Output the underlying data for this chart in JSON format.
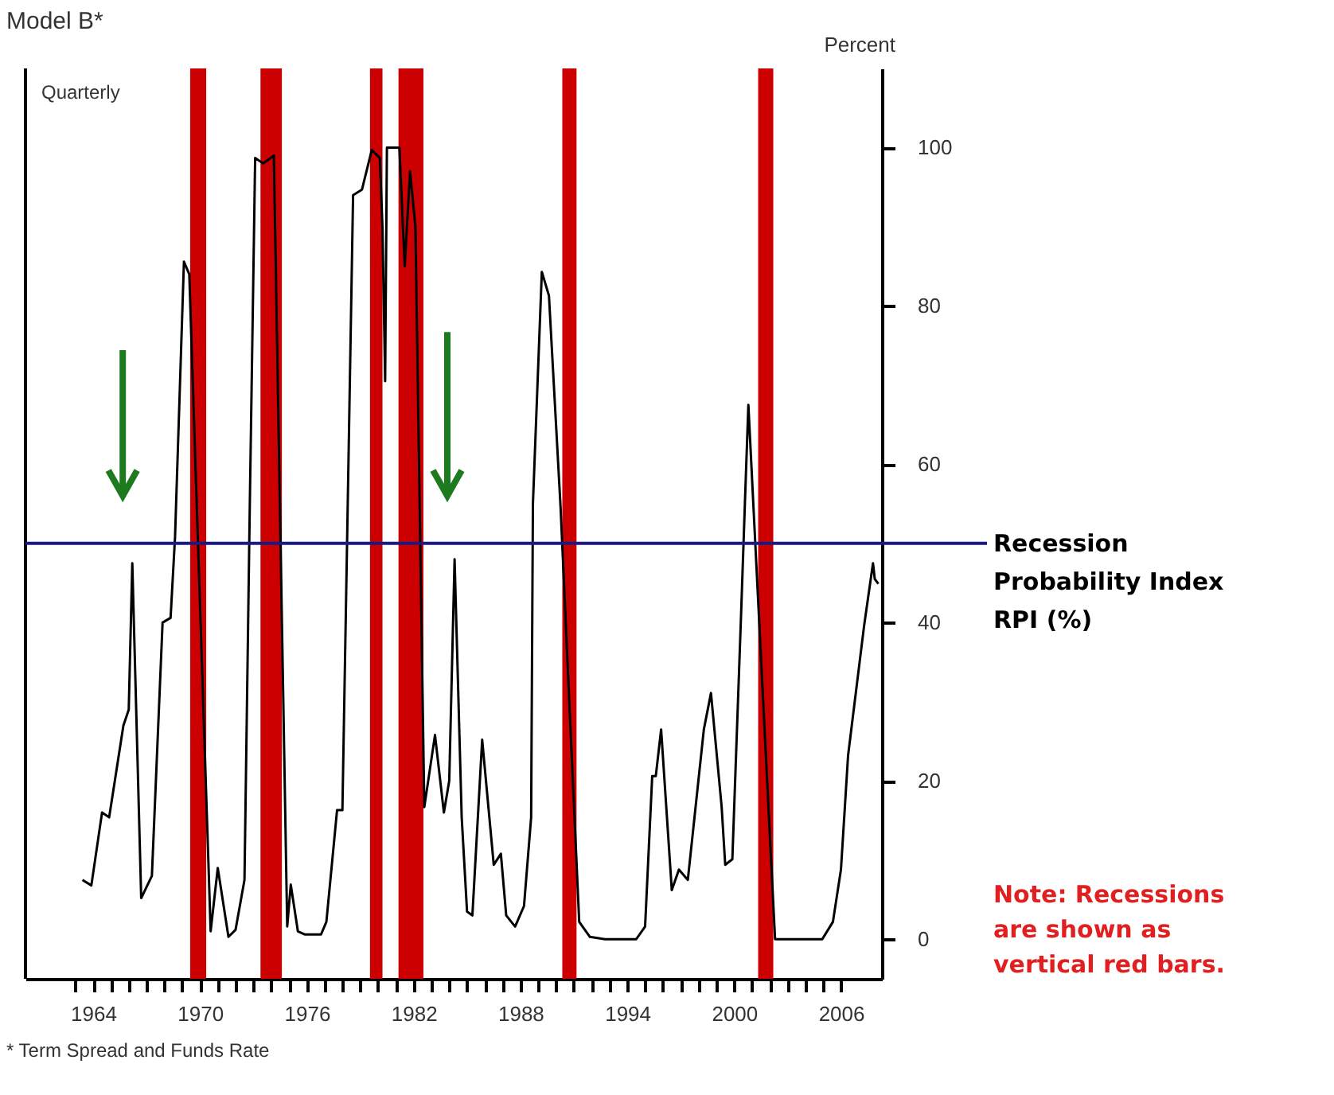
{
  "chart_data": {
    "type": "line",
    "title": "Model B*",
    "ylabel": "Percent",
    "annotations": [
      "Quarterly",
      "* Term Spread and Funds Rate",
      "Note: Recessions are shown as vertical red bars."
    ],
    "xlim": [
      1960.2,
      2008.3
    ],
    "xticks": [
      {
        "value": 1963,
        "label": null
      },
      {
        "value": 1964,
        "label": "1964"
      },
      {
        "value": 1965,
        "label": null
      },
      {
        "value": 1966,
        "label": null
      },
      {
        "value": 1967,
        "label": null
      },
      {
        "value": 1968,
        "label": null
      },
      {
        "value": 1969,
        "label": null
      },
      {
        "value": 1970,
        "label": "1970"
      },
      {
        "value": 1971,
        "label": null
      },
      {
        "value": 1972,
        "label": null
      },
      {
        "value": 1973,
        "label": null
      },
      {
        "value": 1974,
        "label": null
      },
      {
        "value": 1975,
        "label": null
      },
      {
        "value": 1976,
        "label": "1976"
      },
      {
        "value": 1977,
        "label": null
      },
      {
        "value": 1978,
        "label": null
      },
      {
        "value": 1979,
        "label": null
      },
      {
        "value": 1980,
        "label": null
      },
      {
        "value": 1981,
        "label": null
      },
      {
        "value": 1982,
        "label": "1982"
      },
      {
        "value": 1983,
        "label": null
      },
      {
        "value": 1984,
        "label": null
      },
      {
        "value": 1985,
        "label": null
      },
      {
        "value": 1986,
        "label": null
      },
      {
        "value": 1987,
        "label": null
      },
      {
        "value": 1988,
        "label": "1988"
      },
      {
        "value": 1989,
        "label": null
      },
      {
        "value": 1990,
        "label": null
      },
      {
        "value": 1991,
        "label": null
      },
      {
        "value": 1992,
        "label": null
      },
      {
        "value": 1993,
        "label": null
      },
      {
        "value": 1994,
        "label": "1994"
      },
      {
        "value": 1995,
        "label": null
      },
      {
        "value": 1996,
        "label": null
      },
      {
        "value": 1997,
        "label": null
      },
      {
        "value": 1998,
        "label": null
      },
      {
        "value": 1999,
        "label": null
      },
      {
        "value": 2000,
        "label": "2000"
      },
      {
        "value": 2001,
        "label": null
      },
      {
        "value": 2002,
        "label": null
      },
      {
        "value": 2003,
        "label": null
      },
      {
        "value": 2004,
        "label": null
      },
      {
        "value": 2005,
        "label": null
      },
      {
        "value": 2006,
        "label": "2006"
      }
    ],
    "ylim": [
      -5,
      110
    ],
    "yticks": [
      0,
      20,
      40,
      60,
      80,
      100
    ],
    "grid": false,
    "ref_lines": [
      {
        "axis": "y",
        "value": 50,
        "label": "Recession Probability Index RPI (%)",
        "color": "#1a1a80"
      }
    ],
    "bands": [
      {
        "axis": "x",
        "from": 1969.45,
        "to": 1970.35,
        "color": "#cc0000"
      },
      {
        "axis": "x",
        "from": 1973.4,
        "to": 1974.6,
        "color": "#cc0000"
      },
      {
        "axis": "x",
        "from": 1979.55,
        "to": 1980.25,
        "color": "#cc0000"
      },
      {
        "axis": "x",
        "from": 1981.15,
        "to": 1982.55,
        "color": "#cc0000"
      },
      {
        "axis": "x",
        "from": 1990.35,
        "to": 1991.15,
        "color": "#cc0000"
      },
      {
        "axis": "x",
        "from": 2001.35,
        "to": 2002.2,
        "color": "#cc0000"
      }
    ],
    "series": [
      {
        "color": "#000000",
        "x": [
          1963.4,
          1963.9,
          1964.5,
          1964.9,
          1965.7,
          1966.0,
          1966.2,
          1966.7,
          1967.3,
          1967.9,
          1968.35,
          1968.6,
          1969.1,
          1969.4,
          1970.6,
          1971.0,
          1971.6,
          1972.0,
          1972.5,
          1972.8,
          1973.1,
          1973.55,
          1974.15,
          1974.9,
          1975.1,
          1975.5,
          1975.9,
          1976.8,
          1977.1,
          1977.7,
          1978.0,
          1978.3,
          1978.6,
          1979.1,
          1979.65,
          1980.1,
          1980.25,
          1980.4,
          1980.5,
          1981.2,
          1981.5,
          1981.8,
          1982.1,
          1982.6,
          1983.2,
          1983.7,
          1984.0,
          1984.3,
          1984.7,
          1985.0,
          1985.3,
          1985.85,
          1986.5,
          1986.9,
          1987.2,
          1987.7,
          1988.2,
          1988.6,
          1988.7,
          1989.2,
          1989.6,
          1990.25,
          1991.3,
          1991.9,
          1992.75,
          1994.5,
          1995.0,
          1995.4,
          1995.6,
          1995.9,
          1996.5,
          1996.9,
          1997.4,
          1998.3,
          1998.7,
          1999.3,
          1999.5,
          1999.9,
          2000.4,
          2000.6,
          2000.8,
          2002.3,
          2004.95,
          2005.55,
          2006.0,
          2006.4,
          2007.3,
          2007.8,
          2007.9,
          2008.1
        ],
        "values": [
          7.5,
          6.8,
          16,
          15.4,
          27,
          29,
          47.5,
          5.2,
          8,
          40,
          40.6,
          50.8,
          85.6,
          84,
          1,
          9,
          0.3,
          1.2,
          7.5,
          55,
          98.7,
          98,
          99,
          1.6,
          6.9,
          1,
          0.6,
          0.6,
          2.2,
          16.3,
          16.3,
          55,
          94,
          94.7,
          99.7,
          98.7,
          90,
          70.5,
          100,
          100,
          85,
          97,
          90,
          16.7,
          25.8,
          16,
          20,
          48,
          15.4,
          3.5,
          3,
          25.2,
          9.4,
          10.8,
          3,
          1.6,
          4.2,
          15.4,
          55,
          84.3,
          81.3,
          54.7,
          2.2,
          0.3,
          0,
          0,
          1.6,
          20.6,
          20.6,
          26.5,
          6.2,
          8.8,
          7.5,
          26.5,
          31.1,
          16.7,
          9.4,
          10.1,
          41.6,
          54.7,
          67.5,
          0,
          0,
          2.2,
          8.8,
          23.2,
          39.6,
          47.5,
          45.5,
          44.9
        ]
      }
    ]
  }
}
